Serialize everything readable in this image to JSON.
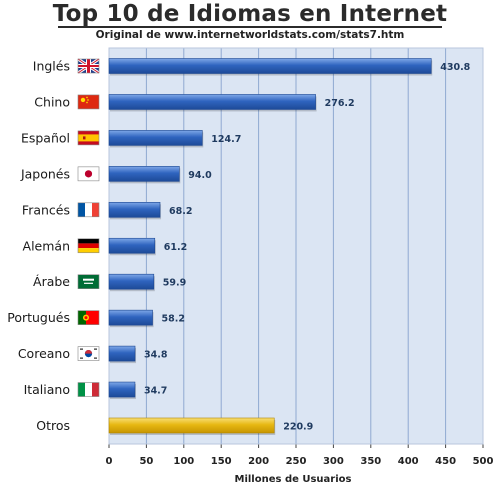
{
  "header": {
    "title": "Top 10 de Idiomas en Internet",
    "subtitle": "Original de www.internetworldstats.com/stats7.htm"
  },
  "colors": {
    "bar": "#2f64bf",
    "bar_highlight": "#7fa8e8",
    "other_bar": "#e7b812",
    "other_bar_highlight": "#f8de74",
    "plot_background": "#dbe5f3",
    "grid": "#8fa9d1"
  },
  "chart_data": {
    "type": "bar",
    "orientation": "horizontal",
    "categories": [
      "Inglés",
      "Chino",
      "Español",
      "Japonés",
      "Francés",
      "Alemán",
      "Árabe",
      "Portugués",
      "Coreano",
      "Italiano",
      "Otros"
    ],
    "values": [
      430.8,
      276.2,
      124.7,
      94.0,
      68.2,
      61.2,
      59.9,
      58.2,
      34.8,
      34.7,
      220.9
    ],
    "value_labels": [
      "430.8",
      "276.2",
      "124.7",
      "94.0",
      "68.2",
      "61.2",
      "59.9",
      "58.2",
      "34.8",
      "34.7",
      "220.9"
    ],
    "flag_icons": [
      "uk-flag-icon",
      "china-flag-icon",
      "spain-flag-icon",
      "japan-flag-icon",
      "france-flag-icon",
      "germany-flag-icon",
      "saudi-flag-icon",
      "portugal-flag-icon",
      "korea-flag-icon",
      "italy-flag-icon",
      ""
    ],
    "title": "Top 10 de Idiomas en Internet",
    "xlabel": "Millones de Usuarios",
    "ylabel": "",
    "xlim": [
      0,
      500
    ],
    "xticks": [
      0,
      50,
      100,
      150,
      200,
      250,
      300,
      350,
      400,
      450,
      500
    ],
    "grid": true
  }
}
